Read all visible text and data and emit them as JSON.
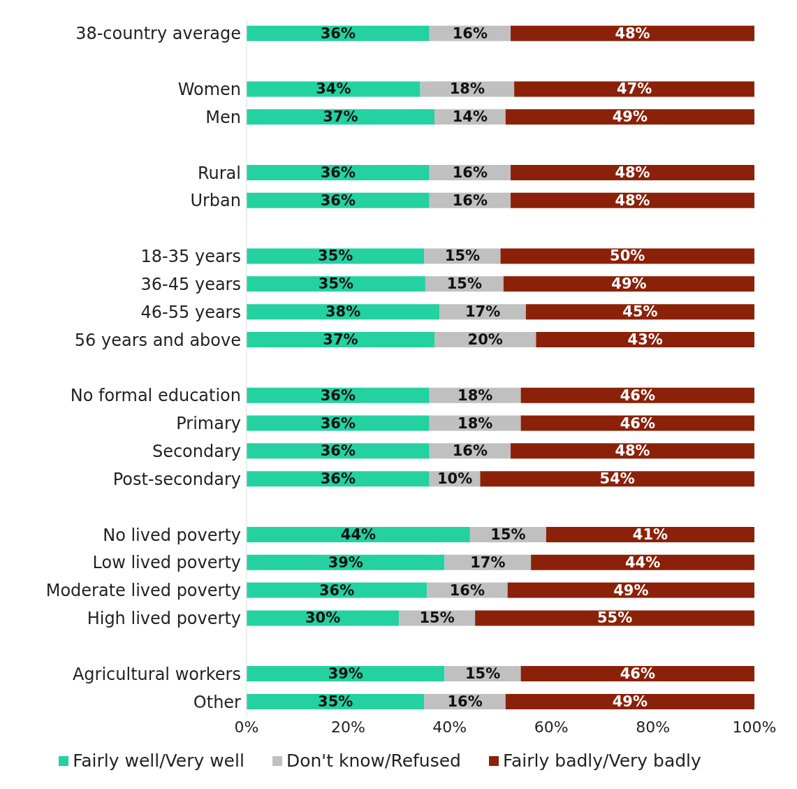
{
  "chart_data": {
    "type": "bar",
    "orientation": "horizontal",
    "stacked": true,
    "categories": [
      "38-country average",
      null,
      "Women",
      "Men",
      null,
      "Rural",
      "Urban",
      null,
      "18-35 years",
      "36-45 years",
      "46-55 years",
      "56 years and above",
      null,
      "No formal education",
      "Primary",
      "Secondary",
      "Post-secondary",
      null,
      "No lived poverty",
      "Low lived poverty",
      "Moderate lived poverty",
      "High lived poverty",
      null,
      "Agricultural workers",
      "Other"
    ],
    "series": [
      {
        "name": "Fairly well/Very well",
        "color": "#24d1a1",
        "values": [
          36,
          null,
          34.2,
          37,
          null,
          36,
          36,
          null,
          35,
          35.2,
          38,
          37,
          null,
          36,
          36,
          36,
          36,
          null,
          44,
          39,
          35.5,
          30,
          null,
          39,
          35
        ],
        "value_labels": [
          "36%",
          null,
          "34%",
          "37%",
          null,
          "36%",
          "36%",
          null,
          "35%",
          "35%",
          "38%",
          "37%",
          null,
          "36%",
          "36%",
          "36%",
          "36%",
          null,
          "44%",
          "39%",
          "36%",
          "30%",
          null,
          "39%",
          "35%"
        ]
      },
      {
        "name": "Don't know/Refused",
        "color": "#c0c0c0",
        "values": [
          16,
          null,
          18.5,
          14,
          null,
          16,
          16,
          null,
          15,
          15.4,
          17,
          20,
          null,
          18,
          18,
          16,
          10,
          null,
          15,
          17,
          15.9,
          15,
          null,
          15,
          16
        ],
        "value_labels": [
          "16%",
          null,
          "18%",
          "14%",
          null,
          "16%",
          "16%",
          null,
          "15%",
          "15%",
          "17%",
          "20%",
          null,
          "18%",
          "18%",
          "16%",
          "10%",
          null,
          "15%",
          "17%",
          "16%",
          "15%",
          null,
          "15%",
          "16%"
        ]
      },
      {
        "name": "Fairly badly/Very badly",
        "color": "#8b2109",
        "values": [
          48,
          null,
          47.3,
          49,
          null,
          48,
          48,
          null,
          50,
          49.4,
          45,
          43,
          null,
          46,
          46,
          48,
          54,
          null,
          41,
          44,
          48.6,
          55,
          null,
          46,
          49
        ],
        "value_labels": [
          "48%",
          null,
          "47%",
          "49%",
          null,
          "48%",
          "48%",
          null,
          "50%",
          "49%",
          "45%",
          "43%",
          null,
          "46%",
          "46%",
          "48%",
          "54%",
          null,
          "41%",
          "44%",
          "49%",
          "55%",
          null,
          "46%",
          "49%"
        ]
      }
    ],
    "xlim": [
      0,
      100
    ],
    "xticks": [
      {
        "value": 0,
        "label": "0%"
      },
      {
        "value": 20,
        "label": "20%"
      },
      {
        "value": 40,
        "label": "40%"
      },
      {
        "value": 60,
        "label": "60%"
      },
      {
        "value": 80,
        "label": "80%"
      },
      {
        "value": 100,
        "label": "100%"
      }
    ],
    "grid": false,
    "legend": "bottom"
  }
}
